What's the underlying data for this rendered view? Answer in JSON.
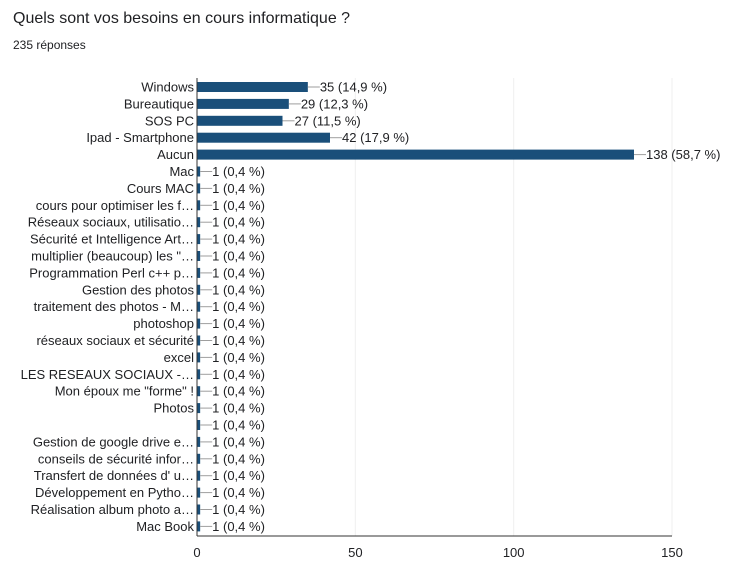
{
  "header": {
    "title": "Quels sont vos besoins en cours informatique ?",
    "responses": "235 réponses"
  },
  "colors": {
    "bar": "#1a4f7a",
    "grid": "#efefef",
    "axis": "#333333",
    "leader": "#9e9e9e"
  },
  "chart_data": {
    "type": "bar",
    "orientation": "horizontal",
    "title": "Quels sont vos besoins en cours informatique ?",
    "subtitle": "235 réponses",
    "categories": [
      "Windows",
      "Bureautique",
      "SOS PC",
      "Ipad - Smartphone",
      "Aucun",
      "Mac",
      "Cours MAC",
      "cours pour optimiser les f…",
      "Réseaux sociaux, utilisatio…",
      "Sécurité et Intelligence Art…",
      "multiplier (beaucoup) les \"…",
      "Programmation Perl c++ p…",
      "Gestion des photos",
      "traitement des photos - M…",
      "photoshop",
      "réseaux sociaux et sécurité",
      "excel",
      "LES RESEAUX SOCIAUX -…",
      "Mon époux me \"forme\" !",
      "Photos",
      "",
      "Gestion de google drive e…",
      "conseils de sécurité infor…",
      "Transfert de données d' u…",
      "Développement en Pytho…",
      "Réalisation album photo a…",
      "Mac Book"
    ],
    "values": [
      35,
      29,
      27,
      42,
      138,
      1,
      1,
      1,
      1,
      1,
      1,
      1,
      1,
      1,
      1,
      1,
      1,
      1,
      1,
      1,
      1,
      1,
      1,
      1,
      1,
      1,
      1
    ],
    "labels": [
      "35 (14,9 %)",
      "29 (12,3 %)",
      "27 (11,5 %)",
      "42 (17,9 %)",
      "138 (58,7 %)",
      "1 (0,4 %)",
      "1 (0,4 %)",
      "1 (0,4 %)",
      "1 (0,4 %)",
      "1 (0,4 %)",
      "1 (0,4 %)",
      "1 (0,4 %)",
      "1 (0,4 %)",
      "1 (0,4 %)",
      "1 (0,4 %)",
      "1 (0,4 %)",
      "1 (0,4 %)",
      "1 (0,4 %)",
      "1 (0,4 %)",
      "1 (0,4 %)",
      "1 (0,4 %)",
      "1 (0,4 %)",
      "1 (0,4 %)",
      "1 (0,4 %)",
      "1 (0,4 %)",
      "1 (0,4 %)",
      "1 (0,4 %)"
    ],
    "xticks": [
      "0",
      "50",
      "100",
      "150"
    ],
    "xlim": [
      0,
      150
    ],
    "grid": true,
    "legend": "none"
  }
}
